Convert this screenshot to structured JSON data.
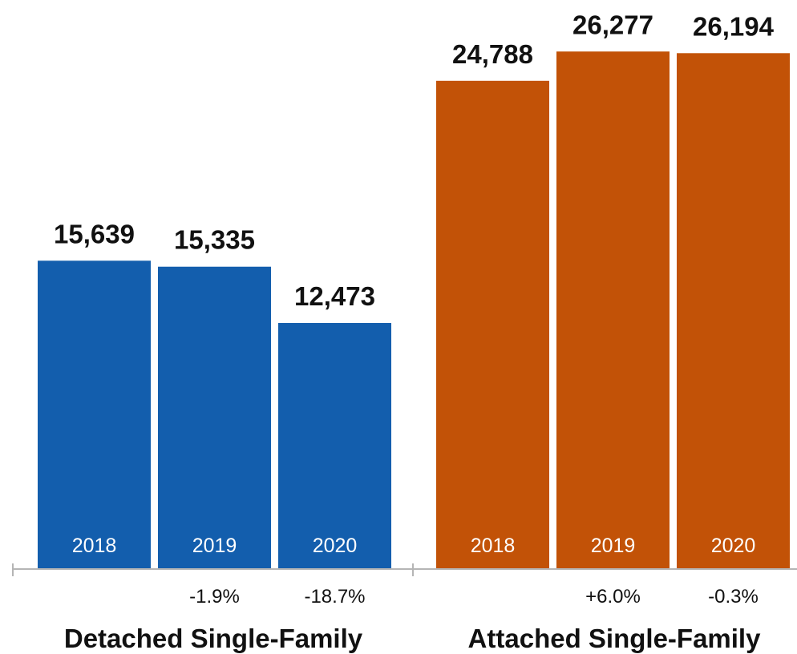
{
  "chart_data": {
    "type": "bar",
    "title": "",
    "xlabel": "",
    "ylabel": "",
    "ylim": [
      0,
      28000
    ],
    "grid": false,
    "legend": "none",
    "groups": [
      {
        "name": "Detached Single-Family",
        "color": "#135EAD",
        "categories": [
          "2018",
          "2019",
          "2020"
        ],
        "values": [
          15639,
          15335,
          12473
        ],
        "value_labels": [
          "15,639",
          "15,335",
          "12,473"
        ],
        "changes": [
          "",
          "-1.9%",
          "-18.7%"
        ]
      },
      {
        "name": "Attached Single-Family",
        "color": "#C25207",
        "categories": [
          "2018",
          "2019",
          "2020"
        ],
        "values": [
          24788,
          26277,
          26194
        ],
        "value_labels": [
          "24,788",
          "26,277",
          "26,194"
        ],
        "changes": [
          "",
          "+6.0%",
          "-0.3%"
        ]
      }
    ]
  }
}
